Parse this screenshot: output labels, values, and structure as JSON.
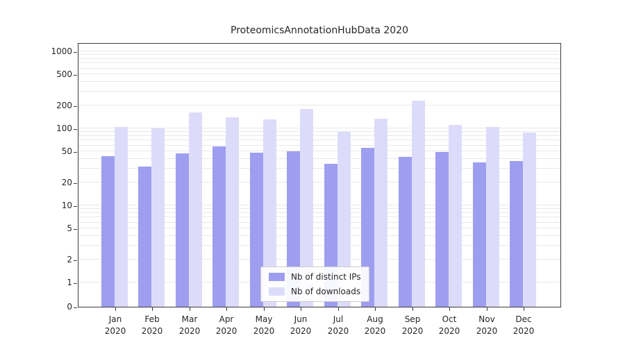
{
  "chart_data": {
    "type": "bar",
    "title": "ProteomicsAnnotationHubData 2020",
    "year": "2020",
    "categories": [
      "Jan",
      "Feb",
      "Mar",
      "Apr",
      "May",
      "Jun",
      "Jul",
      "Aug",
      "Sep",
      "Oct",
      "Nov",
      "Dec"
    ],
    "series": [
      {
        "name": "Nb of distinct IPs",
        "color": "#9e9ef0",
        "values": [
          44,
          32,
          47,
          58,
          48,
          50,
          35,
          56,
          43,
          49,
          36,
          38
        ]
      },
      {
        "name": "Nb of downloads",
        "color": "#dcdcfa",
        "values": [
          105,
          100,
          160,
          140,
          130,
          180,
          90,
          135,
          230,
          110,
          105,
          88
        ]
      }
    ],
    "yscale": "symlog",
    "yticks": [
      0,
      1,
      2,
      5,
      10,
      20,
      50,
      100,
      200,
      500,
      1000
    ],
    "ylim": [
      0,
      1300
    ],
    "grid": "horizontal-minor",
    "legend_position": "lower-center",
    "colors": {
      "grid": "#e8e8e8",
      "spine": "#3a3a3a",
      "text": "#262626",
      "background": "#ffffff"
    }
  }
}
